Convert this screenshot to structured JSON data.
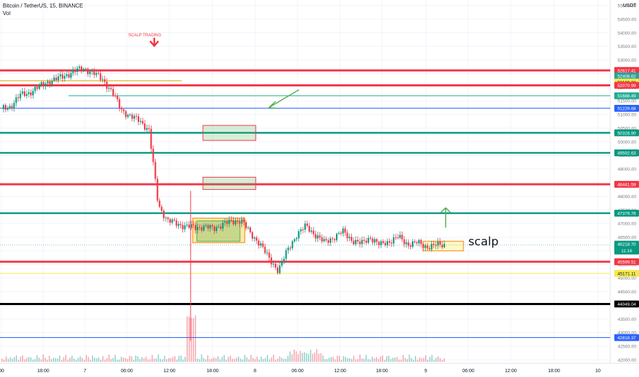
{
  "header": {
    "title": "Bitcoin / TetherUS, 15, BINANCE",
    "vol_label": "Vol"
  },
  "price_axis": {
    "currency": "USDT"
  },
  "chart_data": {
    "type": "candlestick",
    "symbol": "Bitcoin / TetherUS",
    "interval": "15",
    "exchange": "BINANCE",
    "y_ticks": [
      55000,
      54500,
      54000,
      53500,
      53000,
      52500,
      52000,
      51500,
      51000,
      50500,
      50000,
      49500,
      49000,
      48500,
      48000,
      47500,
      47000,
      46500,
      46000,
      45500,
      45000,
      44500,
      44000,
      43500,
      43000,
      42500,
      42000
    ],
    "x_ticks": [
      "00",
      "18:00",
      "7",
      "06:00",
      "12:00",
      "18:00",
      "8",
      "06:00",
      "12:00",
      "18:00",
      "9",
      "06:00",
      "12:00",
      "18:00",
      "10"
    ],
    "grid": true,
    "horizontal_levels": [
      {
        "label": "52617.41",
        "value": 52617.41,
        "color": "#f23645"
      },
      {
        "label": "52408.62",
        "value": 52408.62,
        "color": "#26a69a"
      },
      {
        "label": "52189.38",
        "value": 52189.38,
        "color": "#f5e94a"
      },
      {
        "label": "52070.99",
        "value": 52070.99,
        "color": "#f23645"
      },
      {
        "label": "51688.49",
        "value": 51688.49,
        "color": "#22ab94"
      },
      {
        "label": "51229.68",
        "value": 51229.68,
        "color": "#2962ff"
      },
      {
        "label": "50328.90",
        "value": 50328.9,
        "color": "#089981"
      },
      {
        "label": "49592.63",
        "value": 49592.63,
        "color": "#089981"
      },
      {
        "label": "48441.59",
        "value": 48441.59,
        "color": "#f23645"
      },
      {
        "label": "47379.76",
        "value": 47379.76,
        "color": "#089981"
      },
      {
        "label": "45599.51",
        "value": 45599.51,
        "color": "#f23645"
      },
      {
        "label": "45171.11",
        "value": 45171.11,
        "color": "#f5e94a"
      },
      {
        "label": "44049.04",
        "value": 44049.04,
        "color": "#000000"
      },
      {
        "label": "42818.37",
        "value": 42818.37,
        "color": "#2962ff"
      }
    ],
    "current_price": {
      "label": "46218.70",
      "countdown": "11:16",
      "value": 46218.7
    },
    "annotations": {
      "scalp_trading": "SCALP TRADING",
      "scalp": "scalp"
    },
    "ohlc_close_path": [
      51200,
      51300,
      51700,
      51800,
      52000,
      52200,
      52300,
      52450,
      52600,
      52700,
      52500,
      52300,
      51800,
      51200,
      50900,
      50800,
      50400,
      47700,
      47100,
      47000,
      46900,
      46850,
      46900,
      46800,
      47000,
      47050,
      47150,
      46600,
      46300,
      45700,
      45300,
      46000,
      46600,
      46900,
      46600,
      46300,
      46500,
      46700,
      46400,
      46250,
      46500,
      46200,
      46350,
      46500,
      46250,
      46300,
      46150,
      46200,
      46218.7
    ]
  }
}
